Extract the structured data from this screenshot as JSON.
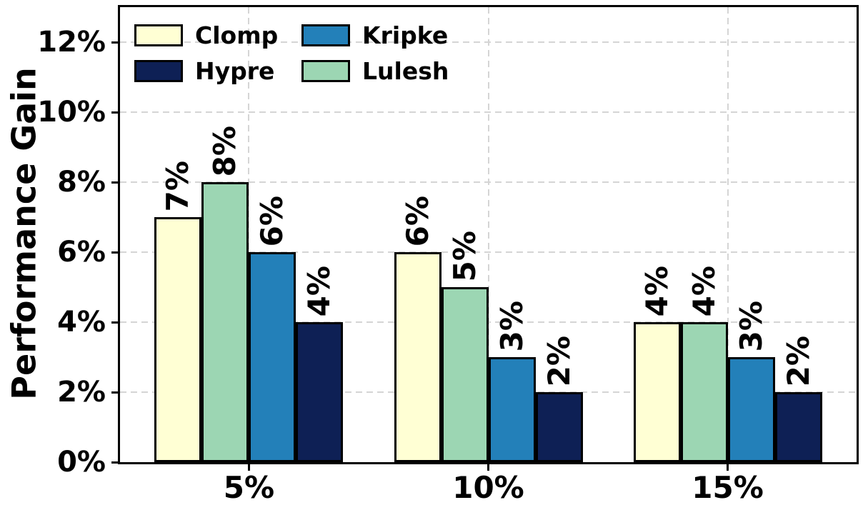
{
  "chart_data": {
    "type": "bar",
    "title": "",
    "xlabel": "",
    "ylabel": "Performance Gain",
    "categories": [
      "5%",
      "10%",
      "15%"
    ],
    "series": [
      {
        "name": "Clomp",
        "color": "#ffffd4",
        "values": [
          7,
          6,
          4
        ]
      },
      {
        "name": "Lulesh",
        "color": "#9cd6b3",
        "values": [
          8,
          5,
          4
        ]
      },
      {
        "name": "Kripke",
        "color": "#2380b9",
        "values": [
          6,
          3,
          3
        ]
      },
      {
        "name": "Hypre",
        "color": "#0e2055",
        "values": [
          4,
          2,
          2
        ]
      }
    ],
    "bar_label_suffix": "%",
    "bar_labels": [
      [
        "7%",
        "6%",
        "4%"
      ],
      [
        "8%",
        "5%",
        "4%"
      ],
      [
        "6%",
        "3%",
        "3%"
      ],
      [
        "4%",
        "2%",
        "2%"
      ]
    ],
    "y_ticks": [
      {
        "label": "0%",
        "value": 0
      },
      {
        "label": "2%",
        "value": 2
      },
      {
        "label": "4%",
        "value": 4
      },
      {
        "label": "6%",
        "value": 6
      },
      {
        "label": "8%",
        "value": 8
      },
      {
        "label": "10%",
        "value": 10
      },
      {
        "label": "12%",
        "value": 12
      }
    ],
    "ylim": [
      0,
      13
    ],
    "grid": "dashed",
    "grid_color": "#d5d5d5",
    "bar_edge_color": "#000000",
    "legend": {
      "position": "upper-left",
      "frame": false,
      "order": [
        "Clomp",
        "Kripke",
        "Hypre",
        "Lulesh"
      ]
    }
  }
}
